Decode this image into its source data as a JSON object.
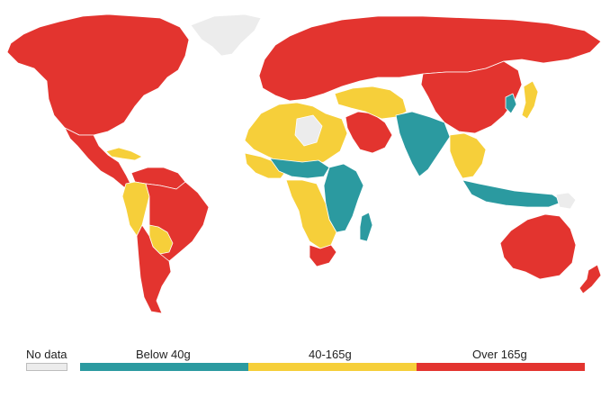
{
  "legend": {
    "no_data": {
      "label": "No data",
      "color": "#ececec"
    },
    "bins": [
      {
        "label": "Below 40g",
        "color": "#2b9aa0"
      },
      {
        "label": "40-165g",
        "color": "#f6cf3a"
      },
      {
        "label": "Over 165g",
        "color": "#e3342f"
      }
    ]
  },
  "map": {
    "regions": [
      {
        "name": "greenland",
        "category": "no_data"
      },
      {
        "name": "north-america",
        "category": "over_165"
      },
      {
        "name": "mexico-central-america",
        "category": "over_165"
      },
      {
        "name": "caribbean",
        "category": "40_165"
      },
      {
        "name": "venezuela",
        "category": "over_165"
      },
      {
        "name": "colombia-peru",
        "category": "40_165"
      },
      {
        "name": "brazil",
        "category": "over_165"
      },
      {
        "name": "bolivia",
        "category": "40_165"
      },
      {
        "name": "southern-cone",
        "category": "over_165"
      },
      {
        "name": "europe-russia",
        "category": "over_165"
      },
      {
        "name": "china-mongolia",
        "category": "over_165"
      },
      {
        "name": "middle-east-gulf",
        "category": "over_165"
      },
      {
        "name": "north-africa",
        "category": "40_165"
      },
      {
        "name": "sahara-no-data",
        "category": "no_data"
      },
      {
        "name": "west-africa",
        "category": "40_165"
      },
      {
        "name": "sahel-belt",
        "category": "below_40"
      },
      {
        "name": "east-africa",
        "category": "below_40"
      },
      {
        "name": "central-southern-africa",
        "category": "40_165"
      },
      {
        "name": "south-africa",
        "category": "over_165"
      },
      {
        "name": "madagascar",
        "category": "below_40"
      },
      {
        "name": "central-asia",
        "category": "40_165"
      },
      {
        "name": "afghanistan-south-asia",
        "category": "below_40"
      },
      {
        "name": "southeast-asia",
        "category": "40_165"
      },
      {
        "name": "indonesia",
        "category": "below_40"
      },
      {
        "name": "japan",
        "category": "40_165"
      },
      {
        "name": "korea",
        "category": "below_40"
      },
      {
        "name": "australia",
        "category": "over_165"
      },
      {
        "name": "new-zealand",
        "category": "over_165"
      },
      {
        "name": "new-guinea",
        "category": "no_data"
      }
    ]
  }
}
